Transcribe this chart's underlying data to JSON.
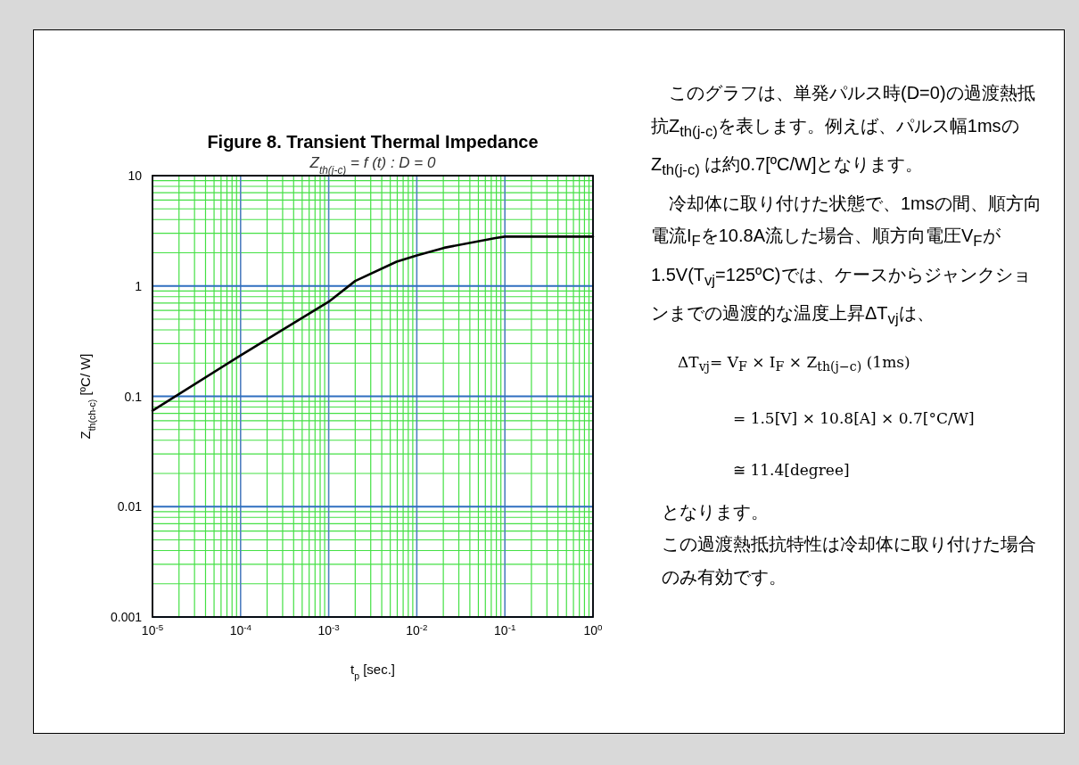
{
  "chart_data": {
    "type": "line",
    "title": "Figure 8. Transient Thermal Impedance",
    "subtitle": "Z$_{th(j-c)}$ = f (t) : D = 0",
    "xlabel": "t$_{p}$  [sec.]",
    "ylabel": "Z$_{th(ch-c)}$  [ºC/ W]",
    "x": [
      1e-05,
      0.0001,
      0.001,
      0.002,
      0.0059,
      0.01,
      0.0205,
      0.078,
      0.1,
      1
    ],
    "series": [
      {
        "color": "#000000",
        "values": [
          0.074,
          0.235,
          0.72,
          1.11,
          1.66,
          1.89,
          2.22,
          2.72,
          2.8,
          2.8
        ]
      }
    ],
    "xlim": [
      1e-05,
      1
    ],
    "ylim": [
      0.001,
      10
    ],
    "xticks": [
      {
        "value": 1e-05,
        "label": "10$^{-5}$"
      },
      {
        "value": 2e-05,
        "label": null
      },
      {
        "value": 3e-05,
        "label": null
      },
      {
        "value": 4e-05,
        "label": null
      },
      {
        "value": 5e-05,
        "label": null
      },
      {
        "value": 6e-05,
        "label": null
      },
      {
        "value": 7e-05,
        "label": null
      },
      {
        "value": 8e-05,
        "label": null
      },
      {
        "value": 9e-05,
        "label": null
      },
      {
        "value": 0.0001,
        "label": "10$^{-4}$"
      },
      {
        "value": 0.0002,
        "label": null
      },
      {
        "value": 0.0003,
        "label": null
      },
      {
        "value": 0.0004,
        "label": null
      },
      {
        "value": 0.0005,
        "label": null
      },
      {
        "value": 0.0006,
        "label": null
      },
      {
        "value": 0.0007,
        "label": null
      },
      {
        "value": 0.0008,
        "label": null
      },
      {
        "value": 0.0009,
        "label": null
      },
      {
        "value": 0.001,
        "label": "10$^{-3}$"
      },
      {
        "value": 0.002,
        "label": null
      },
      {
        "value": 0.003,
        "label": null
      },
      {
        "value": 0.004,
        "label": null
      },
      {
        "value": 0.005,
        "label": null
      },
      {
        "value": 0.006,
        "label": null
      },
      {
        "value": 0.007,
        "label": null
      },
      {
        "value": 0.008,
        "label": null
      },
      {
        "value": 0.009,
        "label": null
      },
      {
        "value": 0.01,
        "label": "10$^{-2}$"
      },
      {
        "value": 0.02,
        "label": null
      },
      {
        "value": 0.03,
        "label": null
      },
      {
        "value": 0.04,
        "label": null
      },
      {
        "value": 0.05,
        "label": null
      },
      {
        "value": 0.06,
        "label": null
      },
      {
        "value": 0.07,
        "label": null
      },
      {
        "value": 0.08,
        "label": null
      },
      {
        "value": 0.09,
        "label": null
      },
      {
        "value": 0.1,
        "label": "10$^{-1}$"
      },
      {
        "value": 0.2,
        "label": null
      },
      {
        "value": 0.3,
        "label": null
      },
      {
        "value": 0.4,
        "label": null
      },
      {
        "value": 0.5,
        "label": null
      },
      {
        "value": 0.6,
        "label": null
      },
      {
        "value": 0.7,
        "label": null
      },
      {
        "value": 0.8,
        "label": null
      },
      {
        "value": 0.9,
        "label": null
      },
      {
        "value": 1,
        "label": "10$^{0}$"
      }
    ],
    "yticks": [
      0.001,
      {
        "value": 0.002,
        "label": null
      },
      {
        "value": 0.003,
        "label": null
      },
      {
        "value": 0.004,
        "label": null
      },
      {
        "value": 0.005,
        "label": null
      },
      {
        "value": 0.006,
        "label": null
      },
      {
        "value": 0.007,
        "label": null
      },
      {
        "value": 0.008,
        "label": null
      },
      {
        "value": 0.009,
        "label": null
      },
      0.01,
      {
        "value": 0.02,
        "label": null
      },
      {
        "value": 0.03,
        "label": null
      },
      {
        "value": 0.04,
        "label": null
      },
      {
        "value": 0.05,
        "label": null
      },
      {
        "value": 0.06,
        "label": null
      },
      {
        "value": 0.07,
        "label": null
      },
      {
        "value": 0.08,
        "label": null
      },
      {
        "value": 0.09,
        "label": null
      },
      0.1,
      {
        "value": 0.2,
        "label": null
      },
      {
        "value": 0.3,
        "label": null
      },
      {
        "value": 0.4,
        "label": null
      },
      {
        "value": 0.5,
        "label": null
      },
      {
        "value": 0.6,
        "label": null
      },
      {
        "value": 0.7,
        "label": null
      },
      {
        "value": 0.8,
        "label": null
      },
      {
        "value": 0.9,
        "label": null
      },
      1,
      {
        "value": 2,
        "label": null
      },
      {
        "value": 3,
        "label": null
      },
      {
        "value": 4,
        "label": null
      },
      {
        "value": 5,
        "label": null
      },
      {
        "value": 6,
        "label": null
      },
      {
        "value": 7,
        "label": null
      },
      {
        "value": 8,
        "label": null
      },
      {
        "value": 9,
        "label": null
      },
      10
    ],
    "log": "xy",
    "grid": true,
    "annotations": [
      "このグラフは、単発パルス時(D=0)の過渡熱抵抗Z$_{th(j-c)}$を表します。例えば、パルス幅1msのZ$_{th(j-c)}$ は約0.7[ºC/W]となります。",
      "冷却体に取り付けた状態で、1msの間、順方向電流I$_{F}$を10.8A流した場合、順方向電圧V$_{F}$が1.5V(T$_{vj}$=125ºC)では、ケースからジャンクションまでの過渡的な温度上昇ΔT$_{vj}$は、",
      "ΔT$_{vj}$= V$_{F}$ × I$_{F}$ × Z$_{th(j−c)}$ (1ms)",
      "= 1.5[V] × 10.8[A] × 0.7[°C/W]",
      "≅ 11.4[degree]",
      "となります。",
      "この過渡熱抵抗特性は冷却体に取り付けた場合のみ有効です。"
    ]
  }
}
